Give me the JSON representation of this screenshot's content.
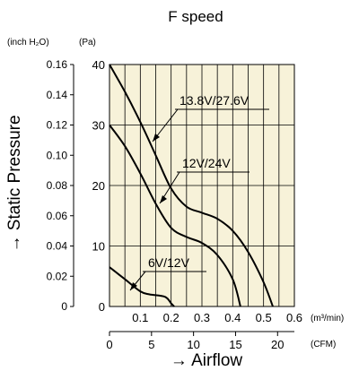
{
  "chart_data": {
    "type": "line",
    "title": "F speed",
    "xlabel": "→ Airflow",
    "ylabel": "→ Static Pressure",
    "x_unit_primary": "(m³/min)",
    "x_unit_secondary": "(CFM)",
    "y_unit_primary": "(Pa)",
    "y_unit_secondary": "(inch H₂O)",
    "xlim": [
      0,
      0.6
    ],
    "ylim": [
      0,
      40
    ],
    "x_ticks": [
      "0.1",
      "0.2",
      "0.3",
      "0.4",
      "0.5",
      "0.6"
    ],
    "x_ticks_cfm": [
      "0",
      "5",
      "10",
      "15",
      "20"
    ],
    "y_ticks_pa": [
      "0",
      "10",
      "20",
      "30",
      "40"
    ],
    "y_ticks_inch": [
      "0",
      "0.02",
      "0.04",
      "0.06",
      "0.08",
      "0.10",
      "0.12",
      "0.14",
      "0.16"
    ],
    "grid": true,
    "series": [
      {
        "name": "13.8V/27.6V",
        "x": [
          0,
          0.05,
          0.1,
          0.15,
          0.2,
          0.25,
          0.3,
          0.35,
          0.4,
          0.45,
          0.5,
          0.53
        ],
        "y": [
          40,
          35.5,
          30.5,
          25,
          19.5,
          16.5,
          15.5,
          14.5,
          12.5,
          9,
          4,
          0
        ]
      },
      {
        "name": "12V/24V",
        "x": [
          0,
          0.05,
          0.1,
          0.15,
          0.2,
          0.25,
          0.3,
          0.35,
          0.4,
          0.425
        ],
        "y": [
          30,
          26.5,
          22,
          17,
          13,
          11.5,
          10.5,
          8.5,
          4.5,
          0
        ]
      },
      {
        "name": "6V/12V",
        "x": [
          0,
          0.05,
          0.1,
          0.13,
          0.18,
          0.2,
          0.21
        ],
        "y": [
          6.5,
          4.5,
          2.5,
          2,
          1.6,
          0.5,
          0
        ]
      }
    ]
  }
}
